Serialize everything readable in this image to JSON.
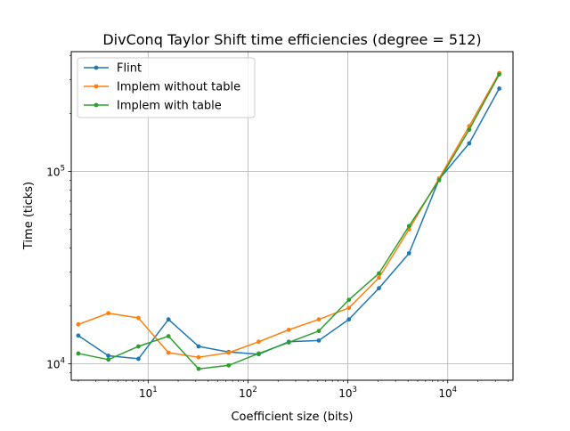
{
  "chart_data": {
    "type": "line",
    "title": "DivConq Taylor Shift time efficiencies (degree = 512)",
    "xlabel": "Coefficient size (bits)",
    "ylabel": "Time (ticks)",
    "xscale": "log",
    "yscale": "log",
    "xlim": [
      1.7,
      45000
    ],
    "ylim": [
      8200,
      420000
    ],
    "grid": true,
    "legend_position": "upper-left",
    "x_major_ticks": [
      {
        "value": 10,
        "base": "10",
        "exp": "1"
      },
      {
        "value": 100,
        "base": "10",
        "exp": "2"
      },
      {
        "value": 1000,
        "base": "10",
        "exp": "3"
      },
      {
        "value": 10000,
        "base": "10",
        "exp": "4"
      }
    ],
    "y_major_ticks": [
      {
        "value": 10000,
        "base": "10",
        "exp": "4"
      },
      {
        "value": 100000,
        "base": "10",
        "exp": "5"
      }
    ],
    "x": [
      2,
      4,
      8,
      16,
      32,
      64,
      128,
      256,
      512,
      1024,
      2048,
      4096,
      8192,
      16384,
      32768
    ],
    "series": [
      {
        "name": "Flint",
        "color": "#1f77b4",
        "values": [
          14000,
          11000,
          10600,
          17000,
          12300,
          11500,
          11200,
          13000,
          13200,
          17000,
          24700,
          37500,
          91000,
          140000,
          270000
        ]
      },
      {
        "name": "Implem without table",
        "color": "#ff7f0e",
        "values": [
          16000,
          18300,
          17300,
          11400,
          10800,
          11400,
          13000,
          15000,
          17000,
          19500,
          28000,
          50000,
          92000,
          172000,
          325000
        ]
      },
      {
        "name": "Implem with table",
        "color": "#2ca02c",
        "values": [
          11300,
          10500,
          12300,
          13900,
          9400,
          9800,
          11300,
          12900,
          14800,
          21500,
          29500,
          52000,
          90000,
          165000,
          320000
        ]
      }
    ]
  }
}
